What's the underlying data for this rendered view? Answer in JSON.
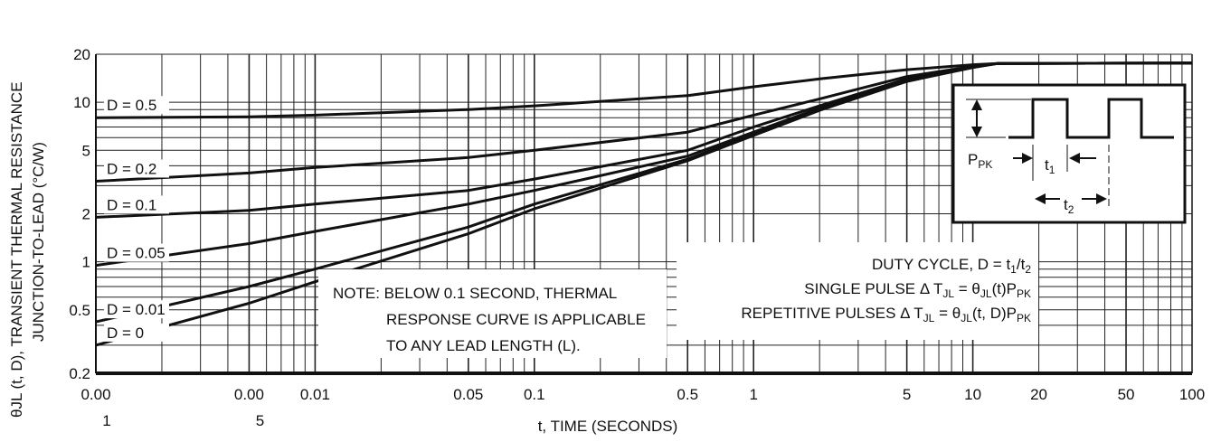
{
  "chart_data": {
    "type": "line",
    "xscale": "log",
    "yscale": "log",
    "xlim": [
      0.001,
      100
    ],
    "ylim": [
      0.2,
      20
    ],
    "xlabel": "t, TIME (SECONDS)",
    "ylabel_line1": "θJL (t, D), TRANSIENT THERMAL RESISTANCE",
    "ylabel_line2": "JUNCTION-TO-LEAD (°C/W)",
    "x_ticks": [
      {
        "value": 0.001,
        "top": "0.00",
        "bottom": "1"
      },
      {
        "value": 0.005,
        "top": "0.00",
        "bottom": "5"
      },
      {
        "value": 0.01,
        "top": "0.01",
        "bottom": ""
      },
      {
        "value": 0.05,
        "top": "0.05",
        "bottom": ""
      },
      {
        "value": 0.1,
        "top": "0.1",
        "bottom": ""
      },
      {
        "value": 0.5,
        "top": "0.5",
        "bottom": ""
      },
      {
        "value": 1,
        "top": "1",
        "bottom": ""
      },
      {
        "value": 5,
        "top": "5",
        "bottom": ""
      },
      {
        "value": 10,
        "top": "10",
        "bottom": ""
      },
      {
        "value": 20,
        "top": "20",
        "bottom": ""
      },
      {
        "value": 50,
        "top": "50",
        "bottom": ""
      },
      {
        "value": 100,
        "top": "100",
        "bottom": ""
      }
    ],
    "y_ticks": [
      {
        "value": 20,
        "label": "20"
      },
      {
        "value": 10,
        "label": "10"
      },
      {
        "value": 5,
        "label": "5"
      },
      {
        "value": 2,
        "label": "2"
      },
      {
        "value": 1,
        "label": "1"
      },
      {
        "value": 0.5,
        "label": "0.5"
      },
      {
        "value": 0.2,
        "label": "0.2"
      }
    ],
    "series": [
      {
        "name": "D = 0.5",
        "points": [
          [
            0.001,
            8.0
          ],
          [
            0.005,
            8.1
          ],
          [
            0.01,
            8.3
          ],
          [
            0.05,
            9.0
          ],
          [
            0.1,
            9.5
          ],
          [
            0.5,
            11.0
          ],
          [
            1,
            12.5
          ],
          [
            2,
            14.0
          ],
          [
            5,
            16.0
          ],
          [
            10,
            17.2
          ],
          [
            13,
            17.5
          ],
          [
            100,
            17.6
          ]
        ]
      },
      {
        "name": "D = 0.2",
        "points": [
          [
            0.001,
            3.2
          ],
          [
            0.005,
            3.6
          ],
          [
            0.01,
            3.9
          ],
          [
            0.05,
            4.5
          ],
          [
            0.1,
            5.0
          ],
          [
            0.5,
            6.5
          ],
          [
            1,
            8.3
          ],
          [
            2,
            10.5
          ],
          [
            5,
            14.5
          ],
          [
            10,
            16.8
          ],
          [
            13,
            17.5
          ],
          [
            100,
            17.6
          ]
        ]
      },
      {
        "name": "D = 0.1",
        "points": [
          [
            0.001,
            1.9
          ],
          [
            0.005,
            2.1
          ],
          [
            0.01,
            2.3
          ],
          [
            0.05,
            2.8
          ],
          [
            0.1,
            3.3
          ],
          [
            0.5,
            5.0
          ],
          [
            1,
            7.0
          ],
          [
            2,
            9.5
          ],
          [
            5,
            14.0
          ],
          [
            10,
            16.7
          ],
          [
            13,
            17.5
          ],
          [
            100,
            17.6
          ]
        ]
      },
      {
        "name": "D = 0.05",
        "points": [
          [
            0.001,
            0.95
          ],
          [
            0.005,
            1.3
          ],
          [
            0.01,
            1.55
          ],
          [
            0.05,
            2.3
          ],
          [
            0.1,
            2.8
          ],
          [
            0.5,
            4.6
          ],
          [
            1,
            6.5
          ],
          [
            2,
            9.2
          ],
          [
            5,
            13.8
          ],
          [
            10,
            16.6
          ],
          [
            13,
            17.5
          ],
          [
            100,
            17.6
          ]
        ]
      },
      {
        "name": "D = 0.01",
        "points": [
          [
            0.001,
            0.42
          ],
          [
            0.005,
            0.7
          ],
          [
            0.01,
            0.9
          ],
          [
            0.05,
            1.65
          ],
          [
            0.1,
            2.3
          ],
          [
            0.5,
            4.4
          ],
          [
            1,
            6.3
          ],
          [
            2,
            9.0
          ],
          [
            5,
            13.6
          ],
          [
            10,
            16.5
          ],
          [
            13,
            17.5
          ],
          [
            100,
            17.6
          ]
        ]
      },
      {
        "name": "D = 0",
        "points": [
          [
            0.001,
            0.3
          ],
          [
            0.005,
            0.55
          ],
          [
            0.01,
            0.75
          ],
          [
            0.05,
            1.5
          ],
          [
            0.1,
            2.15
          ],
          [
            0.5,
            4.3
          ],
          [
            1,
            6.2
          ],
          [
            2,
            8.9
          ],
          [
            5,
            13.5
          ],
          [
            10,
            16.5
          ],
          [
            13,
            17.5
          ],
          [
            100,
            17.6
          ]
        ]
      }
    ],
    "note_lines": [
      "NOTE: BELOW 0.1 SECOND, THERMAL",
      "RESPONSE CURVE IS APPLICABLE",
      "TO ANY LEAD LENGTH (L)."
    ],
    "duty_lines": [
      "DUTY CYCLE, D = t1/t2",
      "SINGLE PULSE Δ TJL = θJL(t)PPK",
      "REPETITIVE PULSES  Δ TJL = θJL(t, D)PPK"
    ],
    "inset": {
      "ppk_label": "PPK",
      "t1_label": "t1",
      "t2_label": "t2"
    }
  }
}
